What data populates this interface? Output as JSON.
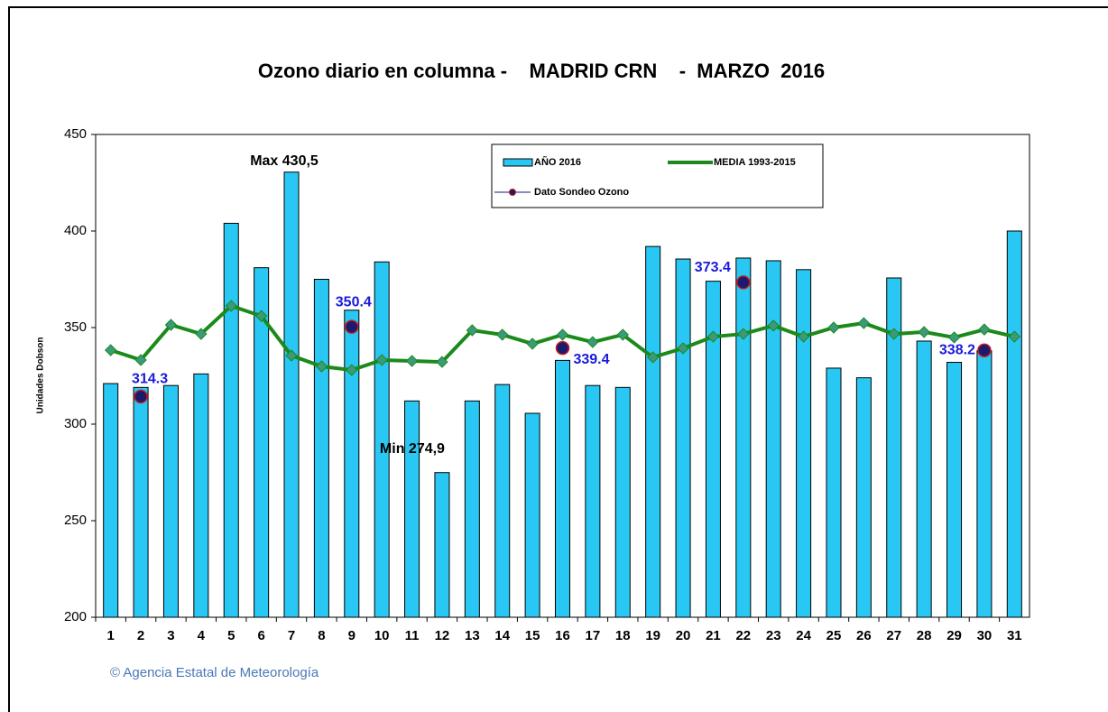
{
  "chart_data": {
    "type": "bar",
    "title": "Ozono diario en columna -    MADRID CRN    -  MARZO  2016",
    "y_label": "Unidades Dobson",
    "source": "© Agencia Estatal de Meteorología",
    "categories": [
      "1",
      "2",
      "3",
      "4",
      "5",
      "6",
      "7",
      "8",
      "9",
      "10",
      "11",
      "12",
      "13",
      "14",
      "15",
      "16",
      "17",
      "18",
      "19",
      "20",
      "21",
      "22",
      "23",
      "24",
      "25",
      "26",
      "27",
      "28",
      "29",
      "30",
      "31"
    ],
    "series": [
      {
        "name": "AÑO 2016",
        "type": "bar",
        "color": "#29c8f4",
        "values": [
          321,
          319,
          320,
          326,
          404,
          381,
          430.5,
          375,
          359,
          384,
          312,
          274.9,
          312,
          320.5,
          305.6,
          333,
          320,
          319,
          392,
          385.5,
          374,
          386,
          384.6,
          380,
          329,
          324,
          375.7,
          343,
          332,
          338,
          400
        ]
      },
      {
        "name": "MEDIA 1993-2015",
        "type": "line",
        "color": "#1b8a1b",
        "marker_color": "#3a9a7a",
        "values": [
          338.3,
          333.2,
          351.4,
          346.7,
          361.2,
          356,
          335.5,
          329.9,
          328,
          333.2,
          332.7,
          332.2,
          348.6,
          346.3,
          341.6,
          346.3,
          342.5,
          346.3,
          334.6,
          339.3,
          345.3,
          346.7,
          351,
          345.3,
          350,
          352.3,
          346.7,
          347.7,
          344.9,
          349,
          345.3
        ]
      },
      {
        "name": "Dato Sondeo Ozono",
        "type": "scatter",
        "color": "#1a1a6e",
        "edge_color": "#cc1a1a",
        "values": [
          null,
          314.3,
          null,
          null,
          null,
          null,
          null,
          null,
          350.4,
          null,
          null,
          null,
          null,
          null,
          null,
          339.4,
          null,
          null,
          null,
          null,
          null,
          373.4,
          null,
          null,
          null,
          null,
          null,
          null,
          null,
          338.2,
          null
        ]
      }
    ],
    "annotations": [
      {
        "text": "Max 430,5",
        "category": "7"
      },
      {
        "text": "Min 274,9",
        "category": "12"
      }
    ],
    "ylim": [
      200,
      450
    ],
    "yticks": [
      200,
      250,
      300,
      350,
      400,
      450
    ],
    "grid": false
  }
}
